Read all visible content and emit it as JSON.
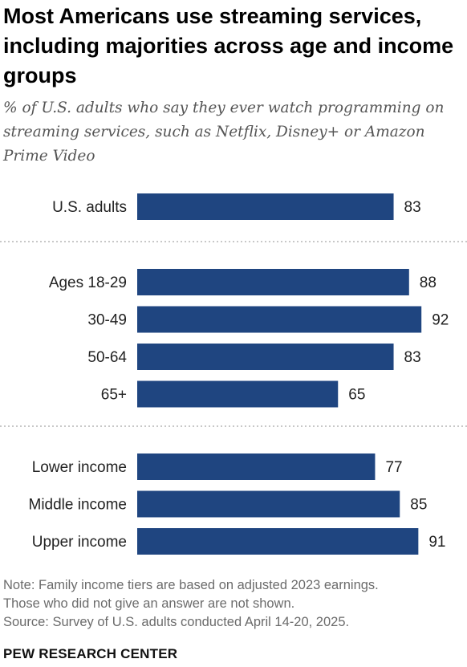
{
  "title": "Most Americans use streaming services, including majorities across age and income groups",
  "subtitle": "% of U.S. adults who say they ever watch programming on streaming services, such as Netflix, Disney+ or Amazon Prime Video",
  "chart_data": {
    "type": "bar",
    "orientation": "horizontal",
    "title": "Most Americans use streaming services, including majorities across age and income groups",
    "subtitle": "% of U.S. adults who say they ever watch programming on streaming services, such as Netflix, Disney+ or Amazon Prime Video",
    "xlabel": "",
    "ylabel": "",
    "xlim": [
      0,
      100
    ],
    "grid": false,
    "bar_color": "#1f4580",
    "separator_color": "#b5b5b5",
    "groups": [
      {
        "categories": [
          "U.S. adults"
        ],
        "values": [
          83
        ]
      },
      {
        "categories": [
          "Ages 18-29",
          "30-49",
          "50-64",
          "65+"
        ],
        "values": [
          88,
          92,
          83,
          65
        ]
      },
      {
        "categories": [
          "Lower income",
          "Middle income",
          "Upper income"
        ],
        "values": [
          77,
          85,
          91
        ]
      }
    ]
  },
  "notes": [
    "Note: Family income tiers are based on adjusted 2023 earnings.",
    "Those who did not give an answer are not shown.",
    "Source: Survey of U.S. adults conducted April 14-20, 2025."
  ],
  "brand": "PEW RESEARCH CENTER"
}
